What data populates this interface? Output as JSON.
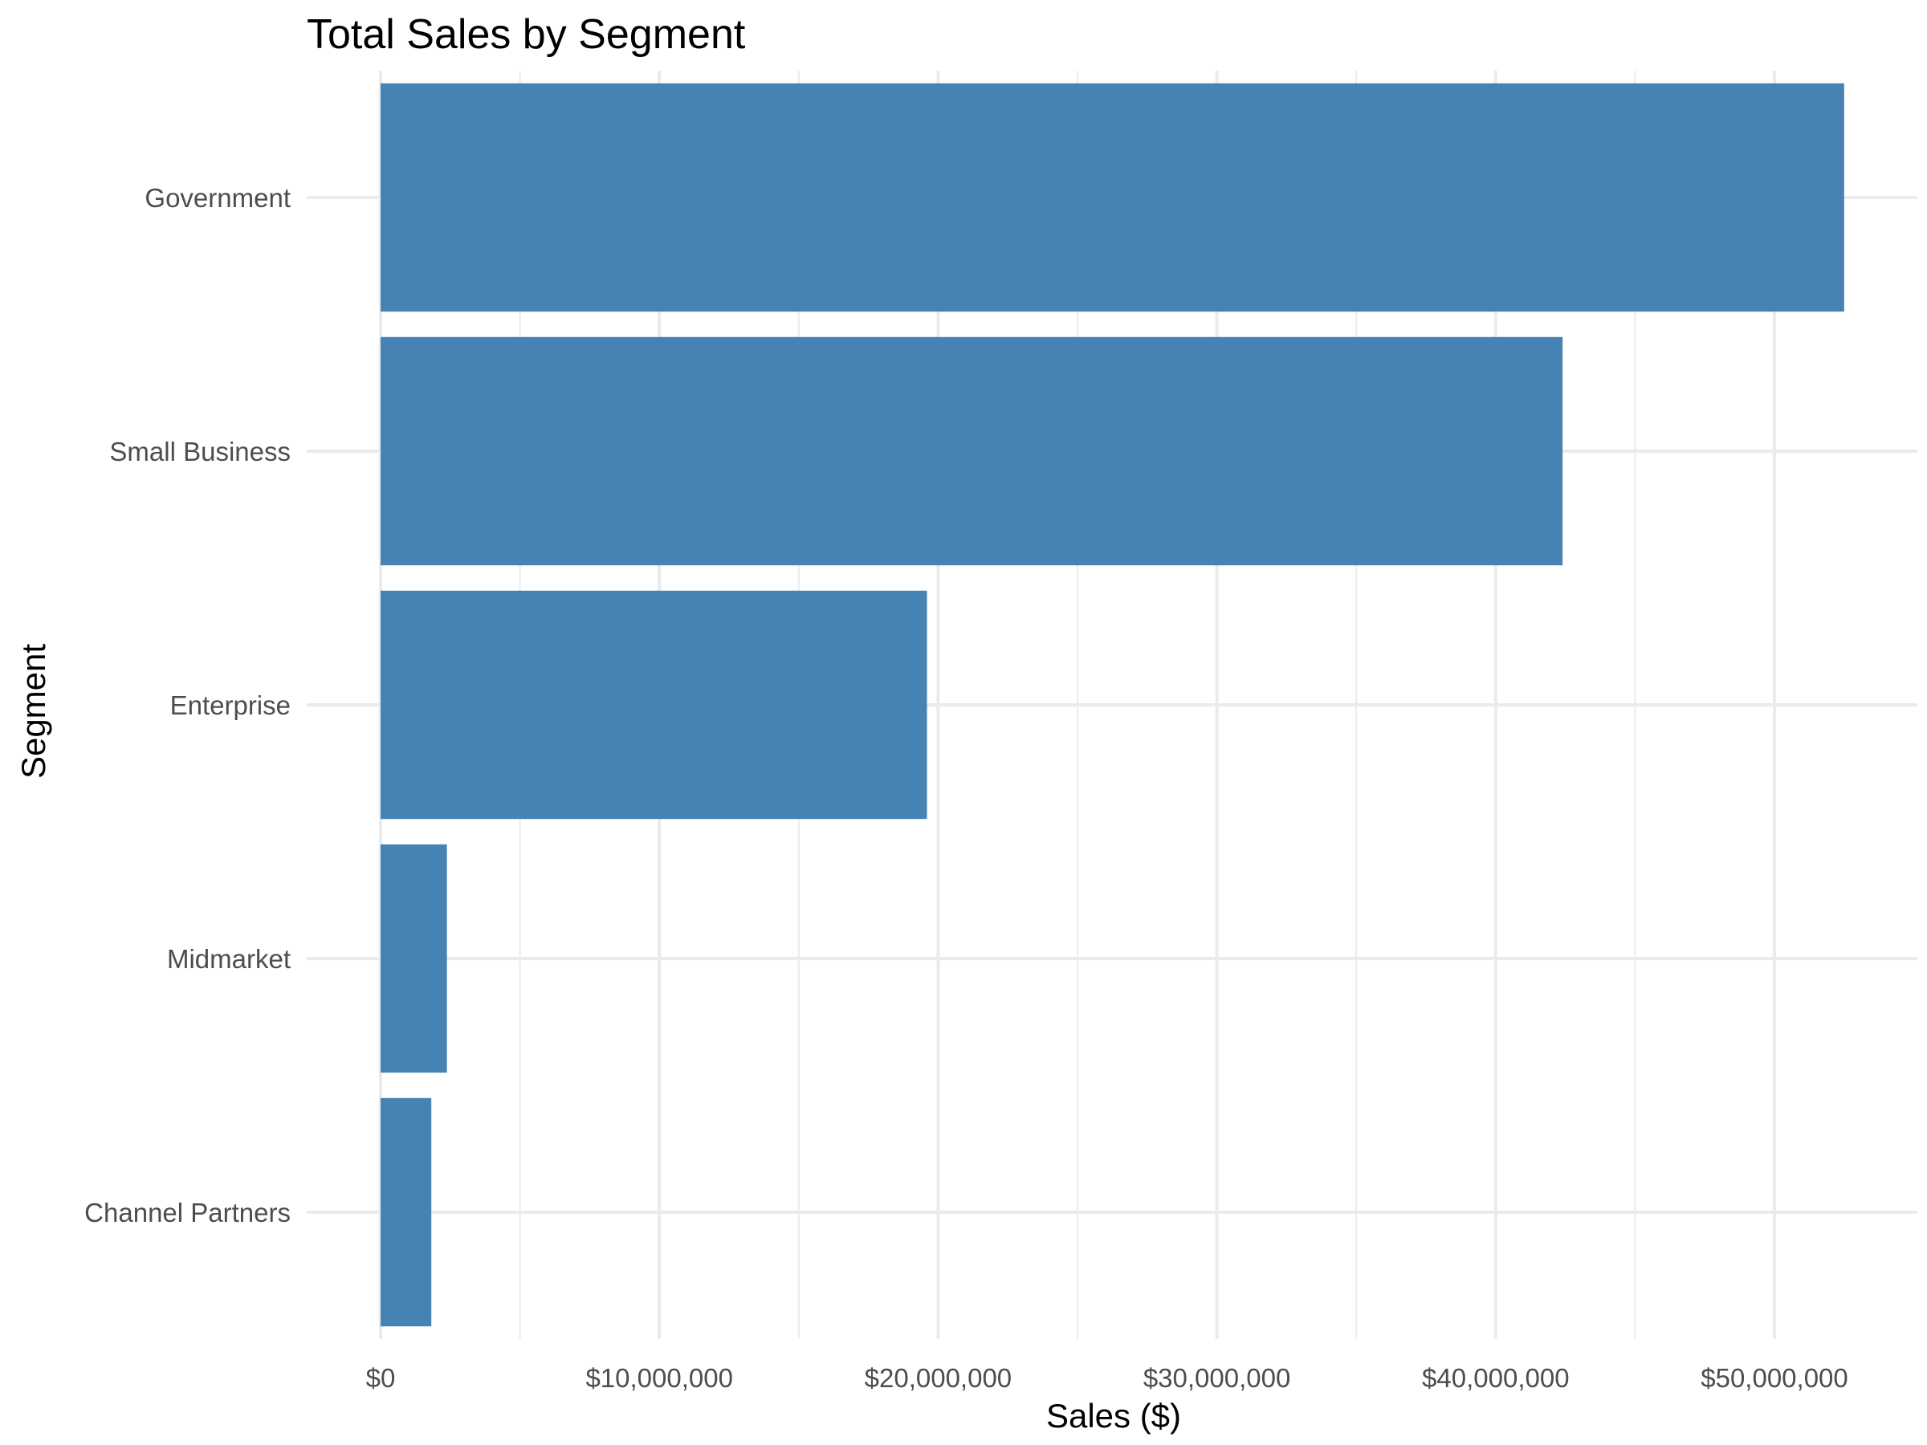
{
  "chart_data": {
    "type": "bar",
    "orientation": "horizontal",
    "title": "Total Sales by Segment",
    "xlabel": "Sales ($)",
    "ylabel": "Segment",
    "categories": [
      "Government",
      "Small Business",
      "Enterprise",
      "Midmarket",
      "Channel Partners"
    ],
    "values": [
      52500000,
      42400000,
      19600000,
      2380000,
      1820000
    ],
    "xlim": [
      0,
      55000000
    ],
    "x_ticks": [
      0,
      10000000,
      20000000,
      30000000,
      40000000,
      50000000
    ],
    "x_tick_labels": [
      "$0",
      "$10,000,000",
      "$20,000,000",
      "$30,000,000",
      "$40,000,000",
      "$50,000,000"
    ],
    "x_minor_ticks": [
      5000000,
      15000000,
      25000000,
      35000000,
      45000000
    ],
    "bar_color": "#4682B4",
    "gridline_color": "#EBEBEB",
    "grid": true,
    "legend": "none"
  }
}
